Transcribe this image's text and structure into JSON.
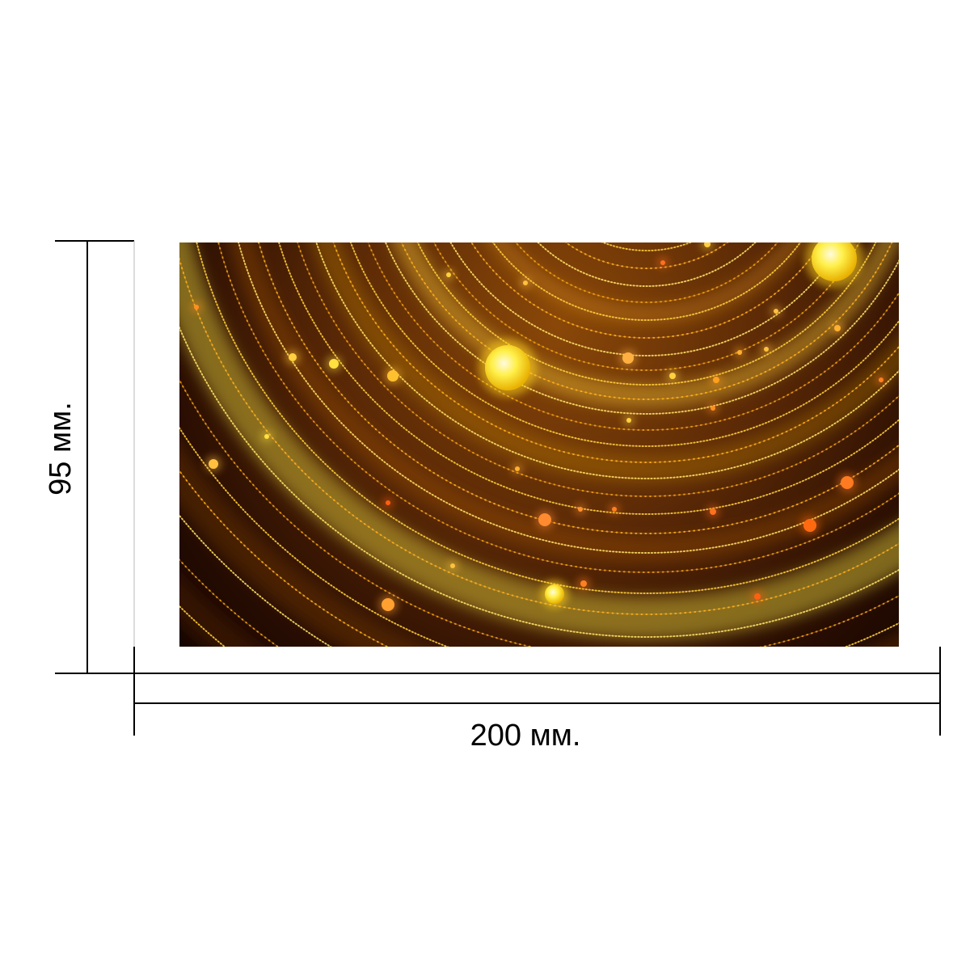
{
  "dimensions": {
    "height_label": "95 мм.",
    "width_label": "200 мм."
  },
  "colors": {
    "background": "#ffffff",
    "dimension_lines": "#000000",
    "photo_dark": "#140500",
    "photo_glow": "#f2c21a",
    "photo_orange": "#ff7a20"
  }
}
